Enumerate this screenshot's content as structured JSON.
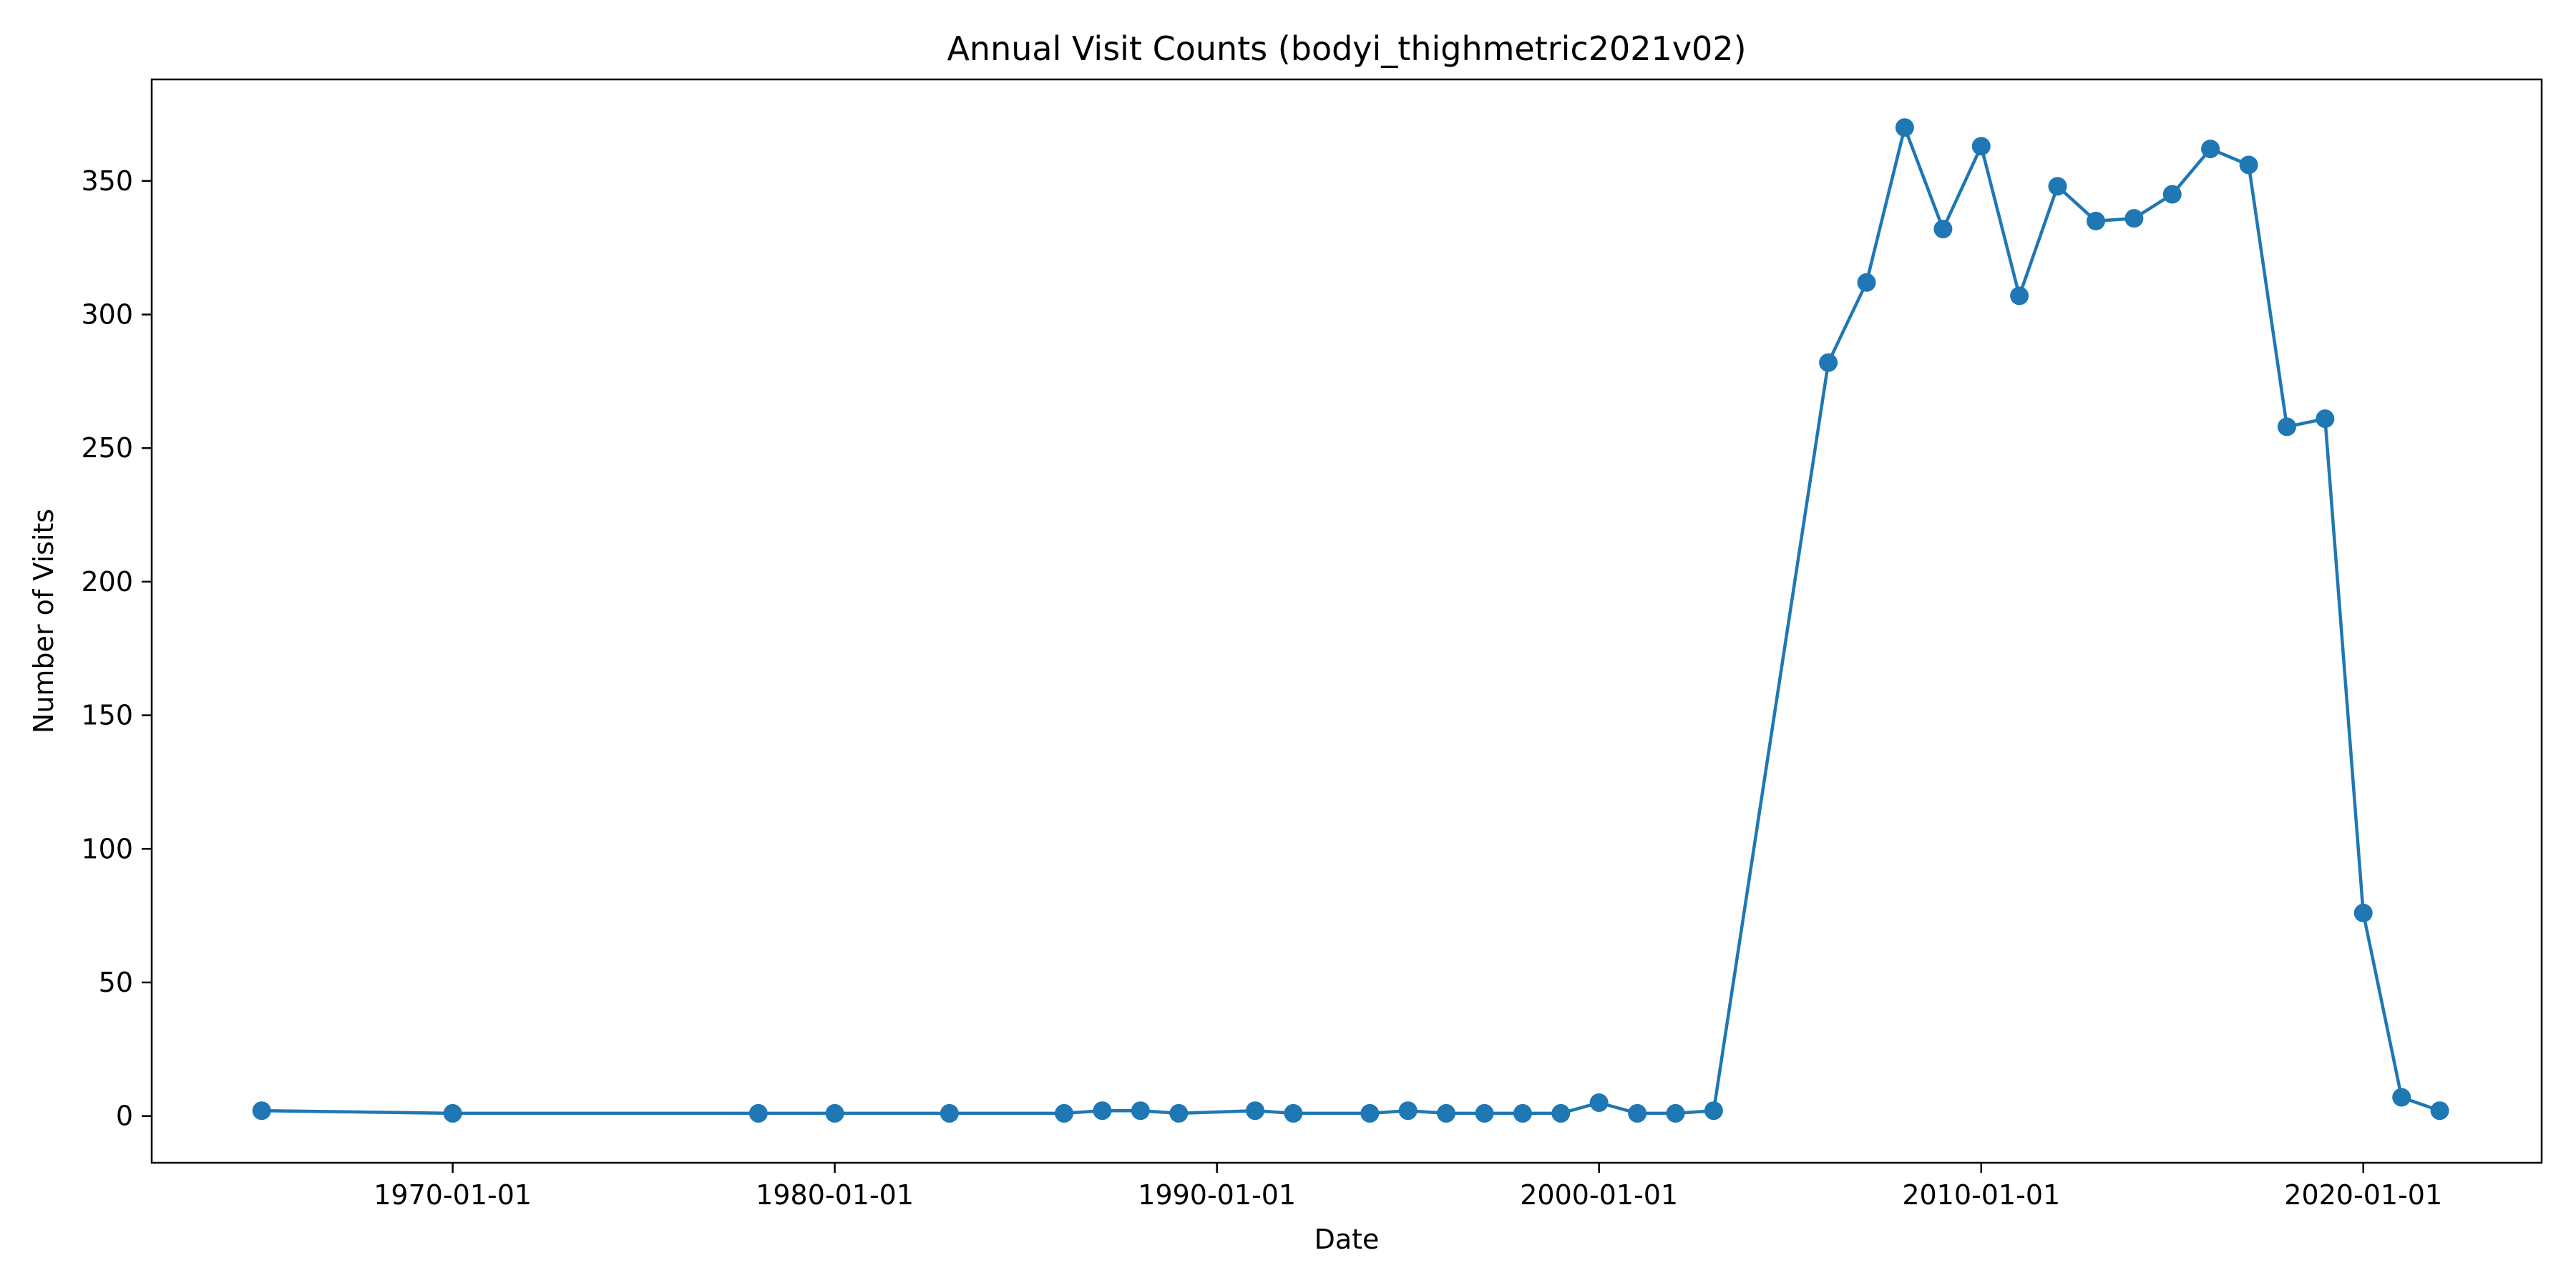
{
  "chart_data": {
    "type": "line",
    "title": "Annual Visit Counts (bodyi_thighmetric2021v02)",
    "xlabel": "Date",
    "ylabel": "Number of Visits",
    "x_scale": "date",
    "xlim": [
      "1962-02-15",
      "2024-09-01"
    ],
    "ylim": [
      -17.5,
      388
    ],
    "x_ticks": [
      "1970-01-01",
      "1980-01-01",
      "1990-01-01",
      "2000-01-01",
      "2010-01-01",
      "2020-01-01"
    ],
    "y_ticks": [
      0,
      50,
      100,
      150,
      200,
      250,
      300,
      350
    ],
    "grid": false,
    "legend": "none",
    "color": "#1f77b4",
    "marker": "circle",
    "series": [
      {
        "x": [
          "1965-01-01",
          "1970-01-01",
          "1978-01-01",
          "1980-01-01",
          "1983-01-01",
          "1986-01-01",
          "1987-01-01",
          "1988-01-01",
          "1989-01-01",
          "1991-01-01",
          "1992-01-01",
          "1994-01-01",
          "1995-01-01",
          "1996-01-01",
          "1997-01-01",
          "1998-01-01",
          "1999-01-01",
          "2000-01-01",
          "2001-01-01",
          "2002-01-01",
          "2003-01-01",
          "2006-01-01",
          "2007-01-01",
          "2008-01-01",
          "2009-01-01",
          "2010-01-01",
          "2011-01-01",
          "2012-01-01",
          "2013-01-01",
          "2014-01-01",
          "2015-01-01",
          "2016-01-01",
          "2017-01-01",
          "2018-01-01",
          "2019-01-01",
          "2020-01-01",
          "2021-01-01",
          "2022-01-01"
        ],
        "values": [
          2,
          1,
          1,
          1,
          1,
          1,
          2,
          2,
          1,
          2,
          1,
          1,
          2,
          1,
          1,
          1,
          1,
          5,
          1,
          1,
          2,
          282,
          312,
          370,
          332,
          363,
          307,
          348,
          335,
          336,
          345,
          362,
          356,
          258,
          261,
          76,
          7,
          2
        ]
      }
    ]
  }
}
